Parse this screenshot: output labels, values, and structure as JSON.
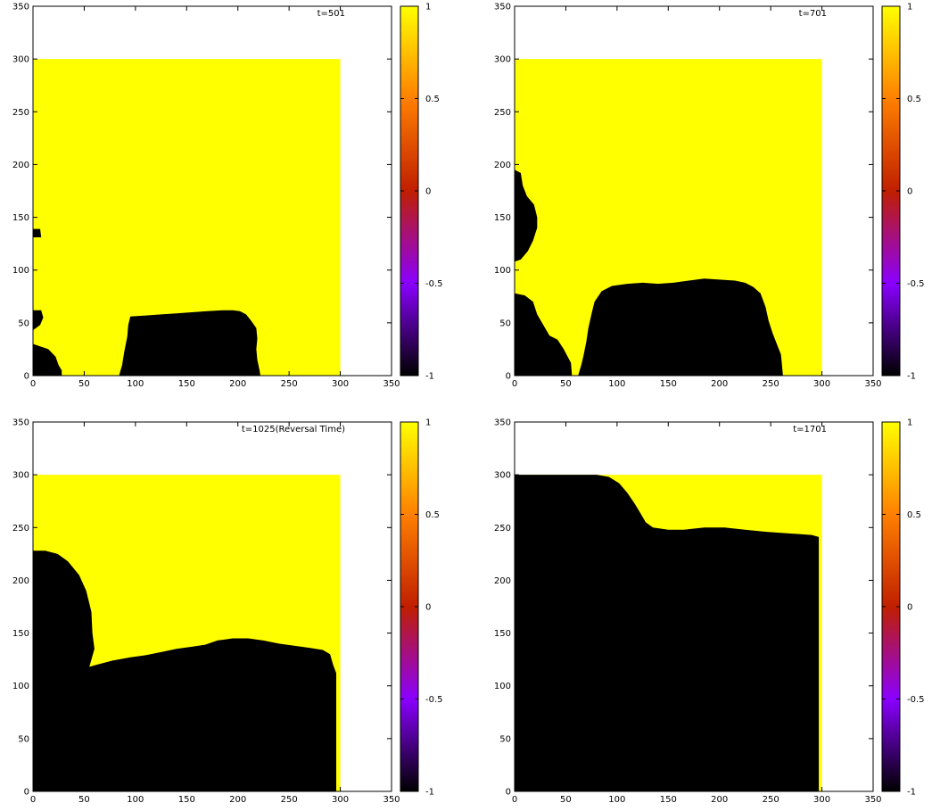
{
  "colors": {
    "black_phase": "#000000",
    "yellow_phase": "#ffff00",
    "frame": "#000000",
    "colorbar_stops": [
      "#000000",
      "#8a00ff",
      "#c01f00",
      "#ff8000",
      "#ffff00"
    ]
  },
  "chart_data": [
    {
      "type": "heatmap",
      "title": "t=501",
      "xlabel": "",
      "ylabel": "",
      "xlim": [
        0,
        350
      ],
      "ylim": [
        0,
        350
      ],
      "xticks": [
        0,
        50,
        100,
        150,
        200,
        250,
        300,
        350
      ],
      "yticks": [
        0,
        50,
        100,
        150,
        200,
        250,
        300,
        350
      ],
      "domain": [
        0,
        300
      ],
      "colorbar": {
        "range": [
          -1,
          1
        ],
        "ticks": [
          1,
          0.5,
          0,
          -0.5,
          -1
        ]
      },
      "background_value": 1,
      "black_regions": [
        [
          [
            0,
            0
          ],
          [
            0,
            30
          ],
          [
            15,
            25
          ],
          [
            22,
            18
          ],
          [
            25,
            10
          ],
          [
            28,
            5
          ],
          [
            28,
            0
          ]
        ],
        [
          [
            0,
            43
          ],
          [
            0,
            62
          ],
          [
            8,
            62
          ],
          [
            10,
            55
          ],
          [
            7,
            48
          ]
        ],
        [
          [
            0,
            131
          ],
          [
            0,
            139
          ],
          [
            7,
            139
          ],
          [
            8,
            131
          ]
        ],
        [
          [
            84,
            0
          ],
          [
            87,
            10
          ],
          [
            89,
            22
          ],
          [
            92,
            37
          ],
          [
            93,
            48
          ],
          [
            95,
            56
          ],
          [
            110,
            57
          ],
          [
            125,
            58
          ],
          [
            140,
            59
          ],
          [
            155,
            60
          ],
          [
            170,
            61
          ],
          [
            185,
            62
          ],
          [
            195,
            62
          ],
          [
            202,
            61
          ],
          [
            208,
            58
          ],
          [
            213,
            52
          ],
          [
            218,
            45
          ],
          [
            219,
            35
          ],
          [
            218,
            25
          ],
          [
            219,
            15
          ],
          [
            221,
            6
          ],
          [
            222,
            0
          ]
        ]
      ]
    },
    {
      "type": "heatmap",
      "title": "t=701",
      "xlabel": "",
      "ylabel": "",
      "xlim": [
        0,
        350
      ],
      "ylim": [
        0,
        350
      ],
      "xticks": [
        0,
        50,
        100,
        150,
        200,
        250,
        300,
        350
      ],
      "yticks": [
        0,
        50,
        100,
        150,
        200,
        250,
        300,
        350
      ],
      "domain": [
        0,
        300
      ],
      "colorbar": {
        "range": [
          -1,
          1
        ],
        "ticks": [
          1,
          0.5,
          0,
          -0.5,
          -1
        ]
      },
      "background_value": 1,
      "black_regions": [
        [
          [
            0,
            195
          ],
          [
            6,
            192
          ],
          [
            8,
            180
          ],
          [
            12,
            170
          ],
          [
            19,
            162
          ],
          [
            22,
            150
          ],
          [
            22,
            140
          ],
          [
            18,
            128
          ],
          [
            13,
            118
          ],
          [
            6,
            110
          ],
          [
            0,
            108
          ]
        ],
        [
          [
            0,
            0
          ],
          [
            0,
            78
          ],
          [
            10,
            76
          ],
          [
            18,
            70
          ],
          [
            22,
            58
          ],
          [
            28,
            48
          ],
          [
            34,
            38
          ],
          [
            42,
            34
          ],
          [
            48,
            25
          ],
          [
            55,
            12
          ],
          [
            56,
            0
          ]
        ],
        [
          [
            62,
            0
          ],
          [
            65,
            10
          ],
          [
            67,
            18
          ],
          [
            70,
            32
          ],
          [
            72,
            45
          ],
          [
            75,
            58
          ],
          [
            78,
            70
          ],
          [
            85,
            80
          ],
          [
            95,
            85
          ],
          [
            110,
            87
          ],
          [
            125,
            88
          ],
          [
            140,
            87
          ],
          [
            155,
            88
          ],
          [
            170,
            90
          ],
          [
            185,
            92
          ],
          [
            200,
            91
          ],
          [
            215,
            90
          ],
          [
            225,
            88
          ],
          [
            233,
            84
          ],
          [
            240,
            78
          ],
          [
            245,
            65
          ],
          [
            248,
            52
          ],
          [
            252,
            40
          ],
          [
            256,
            30
          ],
          [
            260,
            20
          ],
          [
            261,
            10
          ],
          [
            262,
            0
          ]
        ]
      ]
    },
    {
      "type": "heatmap",
      "title": "t=1025(Reversal Time)",
      "xlabel": "",
      "ylabel": "",
      "xlim": [
        0,
        350
      ],
      "ylim": [
        0,
        350
      ],
      "xticks": [
        0,
        50,
        100,
        150,
        200,
        250,
        300,
        350
      ],
      "yticks": [
        0,
        50,
        100,
        150,
        200,
        250,
        300,
        350
      ],
      "domain": [
        0,
        300
      ],
      "colorbar": {
        "range": [
          -1,
          1
        ],
        "ticks": [
          1,
          0.5,
          0,
          -0.5,
          -1
        ]
      },
      "background_value": 1,
      "black_regions": [
        [
          [
            0,
            0
          ],
          [
            0,
            228
          ],
          [
            12,
            228
          ],
          [
            24,
            225
          ],
          [
            34,
            218
          ],
          [
            45,
            205
          ],
          [
            52,
            190
          ],
          [
            57,
            170
          ],
          [
            58,
            150
          ],
          [
            60,
            135
          ],
          [
            55,
            118
          ],
          [
            62,
            120
          ],
          [
            78,
            124
          ],
          [
            95,
            127
          ],
          [
            110,
            129
          ],
          [
            125,
            132
          ],
          [
            140,
            135
          ],
          [
            155,
            137
          ],
          [
            168,
            139
          ],
          [
            180,
            143
          ],
          [
            195,
            145
          ],
          [
            210,
            145
          ],
          [
            225,
            143
          ],
          [
            240,
            140
          ],
          [
            255,
            138
          ],
          [
            270,
            136
          ],
          [
            283,
            134
          ],
          [
            290,
            130
          ],
          [
            293,
            120
          ],
          [
            296,
            112
          ],
          [
            296,
            0
          ]
        ]
      ]
    },
    {
      "type": "heatmap",
      "title": "t=1701",
      "xlabel": "",
      "ylabel": "",
      "xlim": [
        0,
        350
      ],
      "ylim": [
        0,
        350
      ],
      "xticks": [
        0,
        50,
        100,
        150,
        200,
        250,
        300,
        350
      ],
      "yticks": [
        0,
        50,
        100,
        150,
        200,
        250,
        300,
        350
      ],
      "domain": [
        0,
        300
      ],
      "colorbar": {
        "range": [
          -1,
          1
        ],
        "ticks": [
          1,
          0.5,
          0,
          -0.5,
          -1
        ]
      },
      "background_value": 1,
      "black_regions": [
        [
          [
            0,
            0
          ],
          [
            0,
            300
          ],
          [
            80,
            300
          ],
          [
            92,
            298
          ],
          [
            102,
            292
          ],
          [
            110,
            283
          ],
          [
            117,
            273
          ],
          [
            122,
            265
          ],
          [
            128,
            255
          ],
          [
            135,
            250
          ],
          [
            150,
            248
          ],
          [
            165,
            248
          ],
          [
            185,
            250
          ],
          [
            205,
            250
          ],
          [
            225,
            248
          ],
          [
            245,
            246
          ],
          [
            260,
            245
          ],
          [
            275,
            244
          ],
          [
            290,
            243
          ],
          [
            297,
            241
          ],
          [
            297,
            0
          ]
        ]
      ]
    }
  ]
}
